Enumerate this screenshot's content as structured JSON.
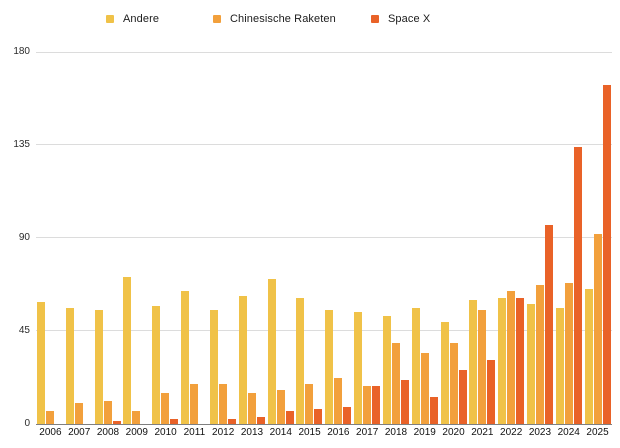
{
  "chart_data": {
    "type": "bar",
    "title": "",
    "xlabel": "",
    "ylabel": "",
    "ylim": [
      0,
      180
    ],
    "y_ticks": [
      0,
      45,
      90,
      135,
      180
    ],
    "grid": true,
    "legend_position": "top",
    "categories": [
      "2006",
      "2007",
      "2008",
      "2009",
      "2010",
      "2011",
      "2012",
      "2013",
      "2014",
      "2015",
      "2016",
      "2017",
      "2018",
      "2019",
      "2020",
      "2021",
      "2022",
      "2023",
      "2024",
      "2025"
    ],
    "series": [
      {
        "name": "Andere",
        "color": "#F0C248",
        "values": [
          59,
          56,
          55,
          71,
          57,
          64,
          55,
          62,
          70,
          61,
          55,
          54,
          52,
          56,
          49,
          60,
          61,
          58,
          56,
          65
        ]
      },
      {
        "name": "Chinesische Raketen",
        "color": "#F2A03C",
        "values": [
          6,
          10,
          11,
          6,
          15,
          19,
          19,
          15,
          16,
          19,
          22,
          18,
          39,
          34,
          39,
          55,
          64,
          67,
          68,
          92
        ]
      },
      {
        "name": "Space X",
        "color": "#E96228",
        "values": [
          0,
          0,
          1,
          0,
          2,
          0,
          2,
          3,
          6,
          7,
          8,
          18,
          21,
          13,
          26,
          31,
          61,
          96,
          134,
          164
        ]
      }
    ],
    "colors": {
      "gridline": "#dcdcdc",
      "axis_line": "#7f7f7f",
      "tick_text": "#2b2b2b",
      "legend_text": "#1c1c1c",
      "background": "#ffffff"
    }
  }
}
